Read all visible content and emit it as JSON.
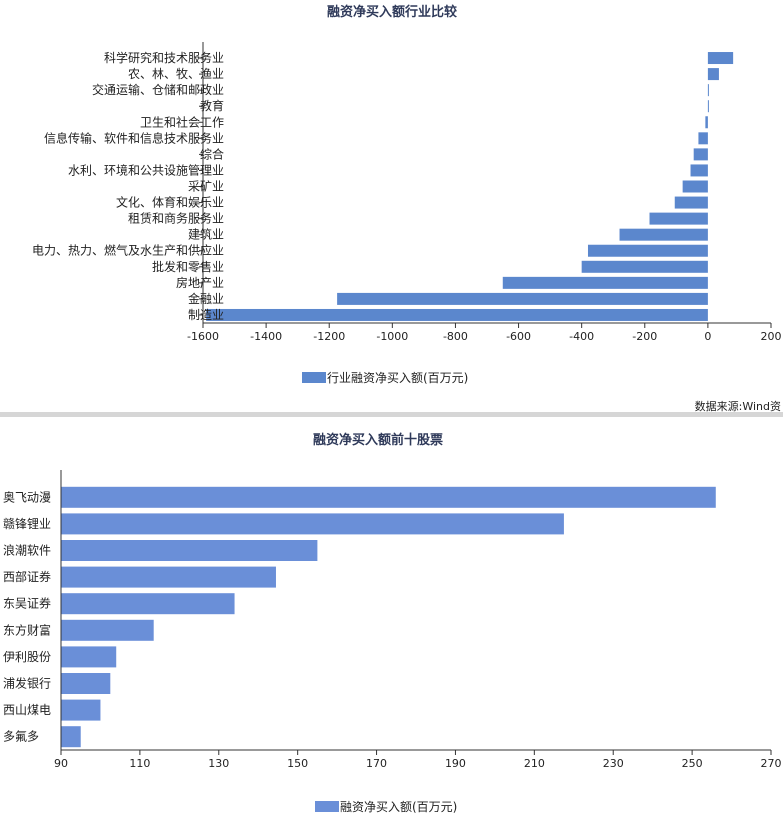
{
  "source_note": "数据来源:Wind资",
  "chart_data": [
    {
      "type": "bar",
      "orientation": "horizontal",
      "title": "融资净买入额行业比较",
      "categories": [
        "科学研究和技术服务业",
        "农、林、牧、渔业",
        "交通运输、仓储和邮政业",
        "教育",
        "卫生和社会工作",
        "信息传输、软件和信息技术服务业",
        "综合",
        "水利、环境和公共设施管理业",
        "采矿业",
        "文化、体育和娱乐业",
        "租赁和商务服务业",
        "建筑业",
        "电力、热力、燃气及水生产和供应业",
        "批发和零售业",
        "房地产业",
        "金融业",
        "制造业"
      ],
      "series": [
        {
          "name": "行业融资净买入额(百万元)",
          "values": [
            80,
            35,
            3,
            3,
            -8,
            -30,
            -45,
            -55,
            -80,
            -105,
            -185,
            -280,
            -380,
            -400,
            -650,
            -1175,
            -1590
          ]
        }
      ],
      "xlim": [
        -1600,
        200
      ],
      "xticks": [
        -1600,
        -1400,
        -1200,
        -1000,
        -800,
        -600,
        -400,
        -200,
        0,
        200
      ],
      "color": "#5b87cd",
      "legend_position": "bottom"
    },
    {
      "type": "bar",
      "orientation": "horizontal",
      "title": "融资净买入额前十股票",
      "categories": [
        "奥飞动漫",
        "赣锋锂业",
        "浪潮软件",
        "西部证券",
        "东吴证券",
        "东方财富",
        "伊利股份",
        "浦发银行",
        "西山煤电",
        "多氟多"
      ],
      "series": [
        {
          "name": "融资净买入额(百万元)",
          "values": [
            256,
            217.5,
            155,
            144.5,
            134,
            113.5,
            104,
            102.5,
            100,
            95
          ]
        }
      ],
      "xlim": [
        90,
        270
      ],
      "xticks": [
        90,
        110,
        130,
        150,
        170,
        190,
        210,
        230,
        250,
        270
      ],
      "color": "#6a8fd8",
      "legend_position": "bottom"
    }
  ]
}
